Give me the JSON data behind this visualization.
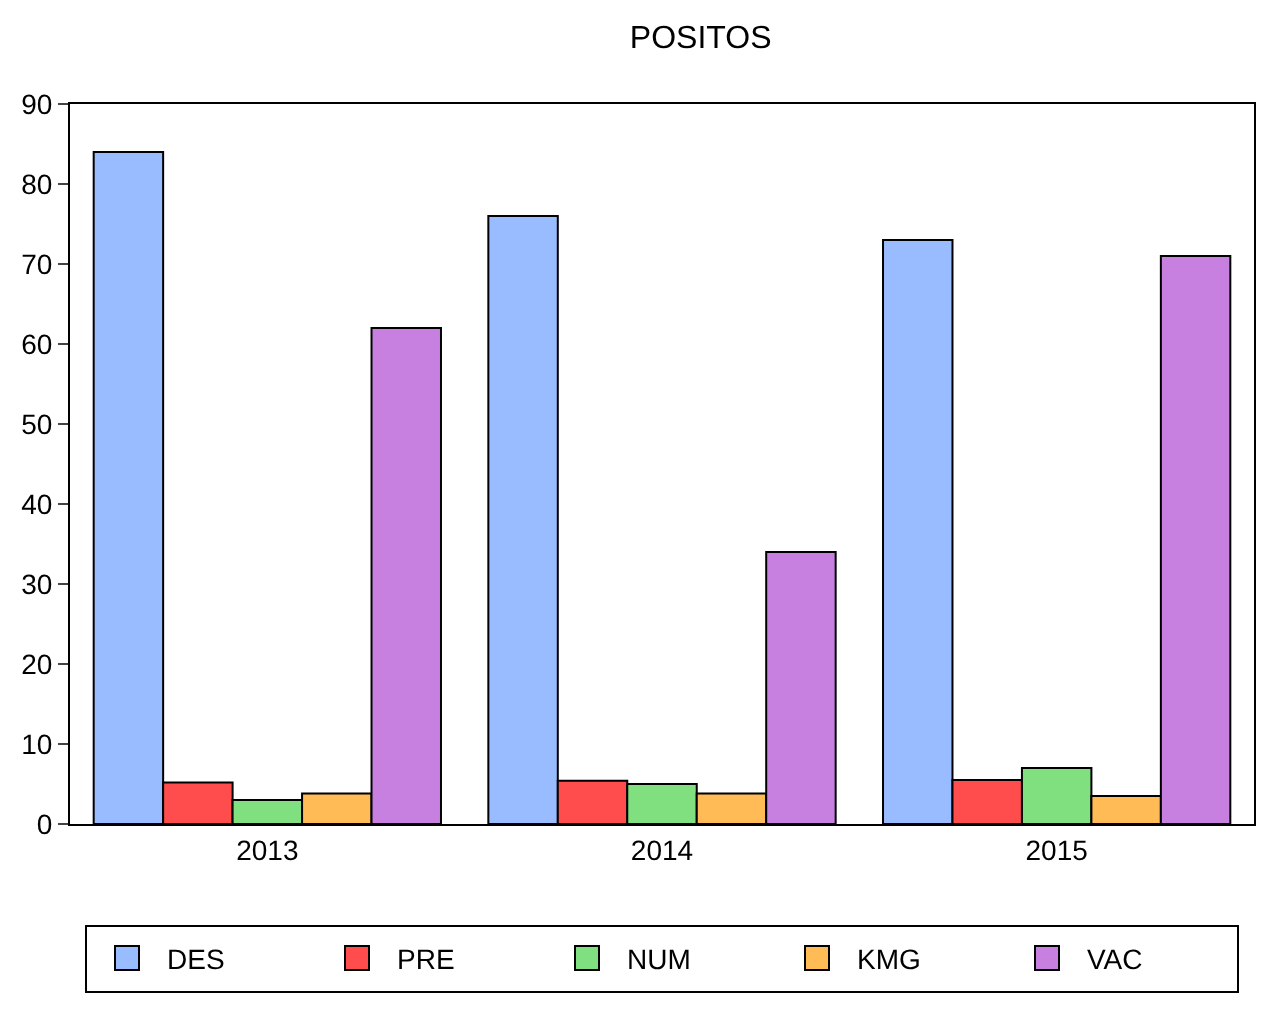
{
  "chart_data": {
    "type": "bar",
    "title": "POSITOS",
    "categories": [
      "2013",
      "2014",
      "2015"
    ],
    "series": [
      {
        "name": "DES",
        "color": "#99bbff",
        "values": [
          84,
          76,
          73
        ]
      },
      {
        "name": "PRE",
        "color": "#ff4d4d",
        "values": [
          5.2,
          5.4,
          5.5
        ]
      },
      {
        "name": "NUM",
        "color": "#80e080",
        "values": [
          3,
          5,
          7
        ]
      },
      {
        "name": "KMG",
        "color": "#ffbb55",
        "values": [
          3.8,
          3.8,
          3.5
        ]
      },
      {
        "name": "VAC",
        "color": "#c880e0",
        "values": [
          62,
          34,
          71
        ]
      }
    ],
    "ylim": [
      0,
      90
    ],
    "yticks": [
      0,
      10,
      20,
      30,
      40,
      50,
      60,
      70,
      80,
      90
    ],
    "grid": false,
    "legend": "bottom"
  }
}
